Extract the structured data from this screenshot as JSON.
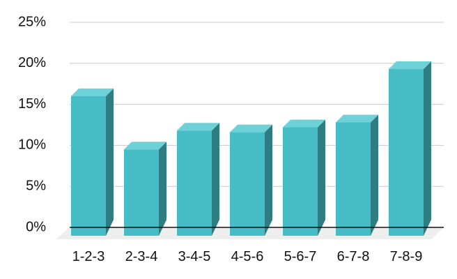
{
  "chart_data": {
    "type": "bar",
    "title": "",
    "xlabel": "",
    "ylabel": "",
    "categories": [
      "1-2-3",
      "2-3-4",
      "3-4-5",
      "4-5-6",
      "5-6-7",
      "6-7-8",
      "7-8-9"
    ],
    "values": [
      16,
      9.5,
      11.8,
      11.6,
      12.2,
      12.8,
      19.3
    ],
    "ylim": [
      0,
      25
    ],
    "yticks": [
      "0%",
      "5%",
      "10%",
      "15%",
      "20%",
      "25%"
    ],
    "grid": true,
    "legend": "none",
    "bar_style": "3d",
    "colors": {
      "bar_front": "#45bcc6",
      "bar_top": "#6ed1d8",
      "bar_side": "#2e7d82",
      "grid": "#c8c8c8",
      "axis": "#111111",
      "floor": "#eeeeee"
    }
  }
}
